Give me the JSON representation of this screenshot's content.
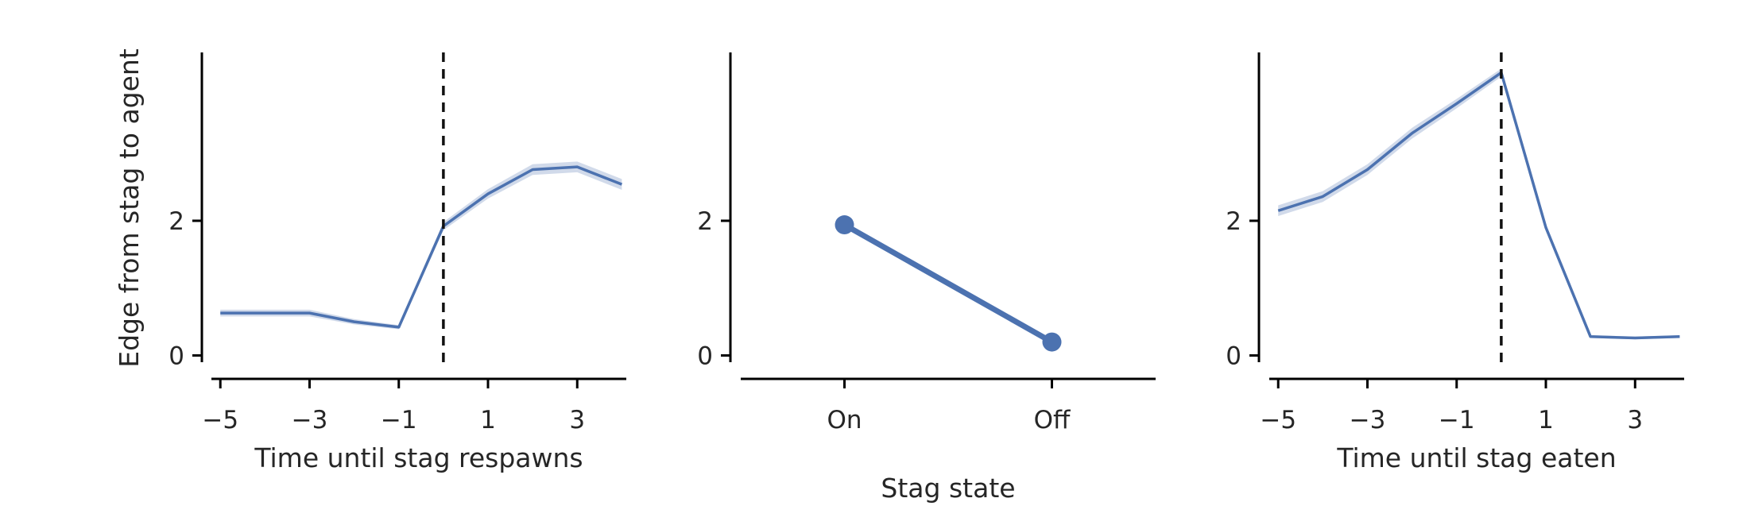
{
  "figure": {
    "series_color": "#4c72b0",
    "band_color": "#c9d3e6",
    "axis_color": "#000000",
    "shared_ylabel": "Edge from stag to agent"
  },
  "chart_data": [
    {
      "type": "line",
      "id": "respawn",
      "xlabel": "Time until stag respawns",
      "ylabel": "Edge from stag to agent",
      "xlim": [
        -5.2,
        4.1
      ],
      "ylim": [
        -0.1,
        4.5
      ],
      "xticks": [
        -5,
        -3,
        -1,
        1,
        3
      ],
      "xtick_labels": [
        "−5",
        "−3",
        "−1",
        "1",
        "3"
      ],
      "yticks": [
        0,
        2
      ],
      "ytick_labels": [
        "0",
        "2"
      ],
      "vline_x": 0,
      "grid": false,
      "x": [
        -5,
        -4,
        -3,
        -2,
        -1,
        0,
        1,
        2,
        3,
        4
      ],
      "series": [
        {
          "values": [
            0.63,
            0.63,
            0.63,
            0.5,
            0.42,
            1.92,
            2.4,
            2.76,
            2.8,
            2.54
          ],
          "ci_low": [
            0.58,
            0.58,
            0.58,
            0.46,
            0.39,
            1.86,
            2.33,
            2.68,
            2.72,
            2.46
          ],
          "ci_high": [
            0.68,
            0.68,
            0.68,
            0.54,
            0.45,
            1.98,
            2.47,
            2.84,
            2.88,
            2.62
          ]
        }
      ]
    },
    {
      "type": "line",
      "id": "state",
      "xlabel": "Stag state",
      "ylabel": "",
      "xlim": [
        -0.5,
        1.5
      ],
      "ylim": [
        -0.1,
        4.5
      ],
      "categories": [
        "On",
        "Off"
      ],
      "yticks": [
        0,
        2
      ],
      "ytick_labels": [
        "0",
        "2"
      ],
      "grid": false,
      "series": [
        {
          "values": [
            1.94,
            0.2
          ],
          "markers": true
        }
      ]
    },
    {
      "type": "line",
      "id": "eaten",
      "xlabel": "Time until stag eaten",
      "ylabel": "",
      "xlim": [
        -5.2,
        4.1
      ],
      "ylim": [
        -0.1,
        4.5
      ],
      "xticks": [
        -5,
        -3,
        -1,
        1,
        3
      ],
      "xtick_labels": [
        "−5",
        "−3",
        "−1",
        "1",
        "3"
      ],
      "yticks": [
        0,
        2
      ],
      "ytick_labels": [
        "0",
        "2"
      ],
      "vline_x": 0,
      "grid": false,
      "x": [
        -5,
        -4,
        -3,
        -2,
        -1,
        0,
        1,
        2,
        3,
        4
      ],
      "series": [
        {
          "values": [
            2.15,
            2.36,
            2.76,
            3.3,
            3.74,
            4.2,
            1.9,
            0.28,
            0.26,
            0.28
          ],
          "ci_low": [
            2.07,
            2.28,
            2.68,
            3.22,
            3.67,
            4.14,
            1.86,
            0.26,
            0.24,
            0.26
          ],
          "ci_high": [
            2.23,
            2.44,
            2.84,
            3.38,
            3.81,
            4.26,
            1.94,
            0.3,
            0.28,
            0.3
          ]
        }
      ]
    }
  ]
}
